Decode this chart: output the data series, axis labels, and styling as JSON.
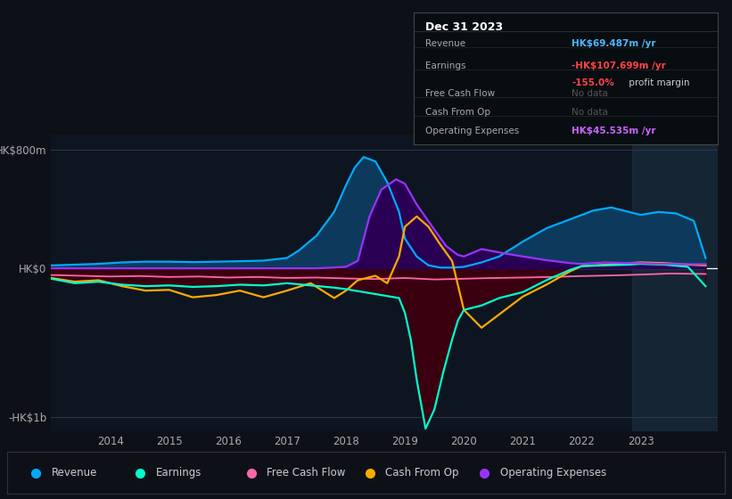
{
  "bg_color": "#0d1117",
  "plot_bg_color": "#0d1520",
  "ylim": [
    -1100,
    900
  ],
  "ytick_positions": [
    -1000,
    0,
    800
  ],
  "ytick_labels": [
    "-HK$1b",
    "HK$0",
    "HK$800m"
  ],
  "xlim_start": 2013.0,
  "xlim_end": 2024.3,
  "xticks": [
    2014,
    2015,
    2016,
    2017,
    2018,
    2019,
    2020,
    2021,
    2022,
    2023
  ],
  "revenue": {
    "x": [
      2013.0,
      2013.4,
      2013.8,
      2014.2,
      2014.6,
      2015.0,
      2015.4,
      2015.8,
      2016.2,
      2016.6,
      2017.0,
      2017.2,
      2017.5,
      2017.8,
      2018.0,
      2018.15,
      2018.3,
      2018.5,
      2018.7,
      2018.9,
      2019.0,
      2019.2,
      2019.4,
      2019.6,
      2019.8,
      2020.0,
      2020.3,
      2020.6,
      2021.0,
      2021.4,
      2021.8,
      2022.0,
      2022.2,
      2022.5,
      2022.7,
      2022.9,
      2023.0,
      2023.3,
      2023.6,
      2023.9,
      2024.1
    ],
    "y": [
      20,
      25,
      30,
      40,
      45,
      45,
      42,
      45,
      48,
      52,
      70,
      120,
      220,
      380,
      560,
      680,
      750,
      720,
      580,
      380,
      200,
      80,
      20,
      5,
      5,
      10,
      40,
      80,
      180,
      270,
      330,
      360,
      390,
      410,
      390,
      370,
      360,
      380,
      370,
      320,
      70
    ],
    "color": "#00aaff",
    "fill_color": "#0d3a5c",
    "label": "Revenue"
  },
  "earnings": {
    "x": [
      2013.0,
      2013.4,
      2013.8,
      2014.2,
      2014.6,
      2015.0,
      2015.4,
      2015.8,
      2016.2,
      2016.6,
      2017.0,
      2017.4,
      2017.8,
      2018.0,
      2018.3,
      2018.6,
      2018.9,
      2019.0,
      2019.1,
      2019.2,
      2019.35,
      2019.5,
      2019.65,
      2019.8,
      2019.9,
      2020.0,
      2020.3,
      2020.6,
      2021.0,
      2021.4,
      2021.8,
      2022.0,
      2022.4,
      2022.8,
      2023.0,
      2023.4,
      2023.8,
      2024.1
    ],
    "y": [
      -70,
      -100,
      -90,
      -110,
      -120,
      -115,
      -125,
      -120,
      -110,
      -115,
      -100,
      -115,
      -130,
      -140,
      -160,
      -180,
      -200,
      -300,
      -480,
      -750,
      -1080,
      -950,
      -700,
      -480,
      -350,
      -280,
      -250,
      -200,
      -160,
      -80,
      -10,
      15,
      20,
      25,
      30,
      25,
      10,
      -120
    ],
    "color": "#00ffcc",
    "fill_color": "#3a0010",
    "label": "Earnings"
  },
  "free_cash_flow": {
    "x": [
      2013.0,
      2013.5,
      2014.0,
      2014.5,
      2015.0,
      2015.5,
      2016.0,
      2016.5,
      2017.0,
      2017.5,
      2018.0,
      2018.5,
      2019.0,
      2019.5,
      2020.0,
      2020.5,
      2021.0,
      2021.5,
      2022.0,
      2022.5,
      2023.0,
      2023.5,
      2024.1
    ],
    "y": [
      -45,
      -50,
      -55,
      -52,
      -58,
      -55,
      -62,
      -58,
      -65,
      -62,
      -68,
      -72,
      -65,
      -75,
      -70,
      -65,
      -62,
      -58,
      -52,
      -48,
      -42,
      -35,
      -38
    ],
    "color": "#ff66aa",
    "label": "Free Cash Flow"
  },
  "cash_from_op": {
    "x": [
      2013.0,
      2013.4,
      2013.8,
      2014.2,
      2014.6,
      2015.0,
      2015.4,
      2015.8,
      2016.2,
      2016.6,
      2017.0,
      2017.4,
      2017.8,
      2018.0,
      2018.2,
      2018.5,
      2018.7,
      2018.9,
      2019.0,
      2019.2,
      2019.4,
      2019.6,
      2019.8,
      2020.0,
      2020.3,
      2020.7,
      2021.0,
      2021.4,
      2021.8,
      2022.0,
      2022.4,
      2022.8,
      2023.0,
      2023.4,
      2023.8,
      2024.1
    ],
    "y": [
      -65,
      -90,
      -80,
      -120,
      -150,
      -145,
      -195,
      -180,
      -150,
      -195,
      -150,
      -100,
      -200,
      -150,
      -80,
      -50,
      -100,
      80,
      280,
      350,
      280,
      160,
      50,
      -280,
      -400,
      -280,
      -190,
      -110,
      -20,
      15,
      25,
      35,
      40,
      35,
      25,
      20
    ],
    "color": "#ffaa00",
    "label": "Cash From Op"
  },
  "operating_expenses": {
    "x": [
      2013.0,
      2013.5,
      2014.0,
      2014.5,
      2015.0,
      2015.5,
      2016.0,
      2016.5,
      2017.0,
      2017.5,
      2018.0,
      2018.2,
      2018.4,
      2018.6,
      2018.85,
      2019.0,
      2019.2,
      2019.5,
      2019.7,
      2019.9,
      2020.0,
      2020.3,
      2020.7,
      2021.0,
      2021.4,
      2021.8,
      2022.0,
      2022.4,
      2022.8,
      2023.0,
      2023.4,
      2023.8,
      2024.1
    ],
    "y": [
      0,
      0,
      0,
      0,
      0,
      0,
      0,
      0,
      0,
      0,
      10,
      50,
      350,
      530,
      600,
      570,
      430,
      260,
      150,
      90,
      80,
      130,
      100,
      80,
      55,
      35,
      30,
      40,
      35,
      35,
      30,
      28,
      28
    ],
    "color": "#9933ff",
    "fill_color": "#2a0055",
    "label": "Operating Expenses"
  },
  "highlight_x_start": 2022.85,
  "highlight_x_end": 2024.3,
  "legend": [
    {
      "label": "Revenue",
      "color": "#00aaff"
    },
    {
      "label": "Earnings",
      "color": "#00ffcc"
    },
    {
      "label": "Free Cash Flow",
      "color": "#ff66aa"
    },
    {
      "label": "Cash From Op",
      "color": "#ffaa00"
    },
    {
      "label": "Operating Expenses",
      "color": "#9933ff"
    }
  ]
}
